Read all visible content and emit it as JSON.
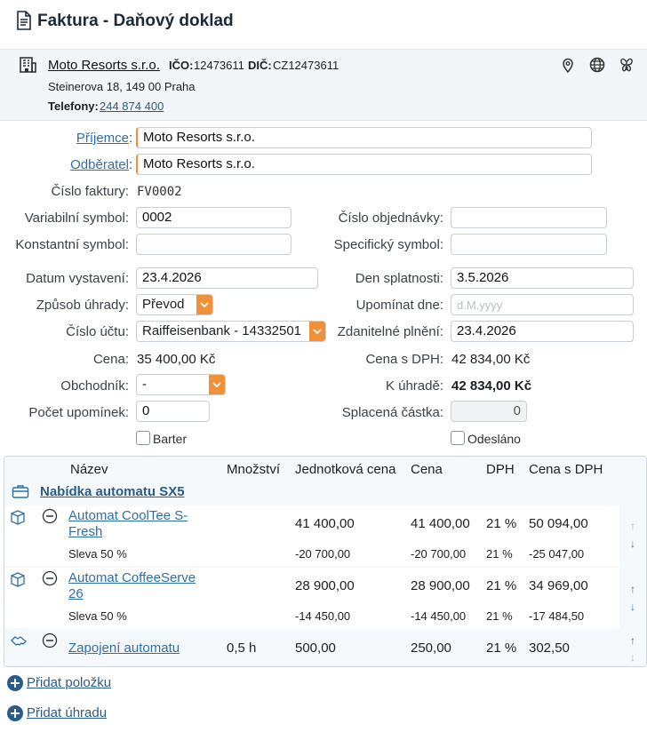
{
  "header": {
    "title": "Faktura - Daňový doklad"
  },
  "company": {
    "name": "Moto Resorts s.r.o.",
    "ico_label": "IČO:",
    "ico": "12473611",
    "dic_label": "DIČ:",
    "dic": "CZ12473611",
    "address": "Steinerova 18, 149 00 Praha",
    "phone_label": "Telefony:",
    "phone": "244 874 400"
  },
  "form": {
    "recipient_label": "Příjemce",
    "recipient": "Moto Resorts s.r.o.",
    "customer_label": "Odběratel",
    "customer": "Moto Resorts s.r.o.",
    "invoice_no_label": "Číslo faktury:",
    "invoice_no": "FV0002",
    "var_symbol_label": "Variabilní symbol:",
    "var_symbol": "0002",
    "order_no_label": "Číslo objednávky:",
    "order_no": "",
    "const_symbol_label": "Konstantní symbol:",
    "const_symbol": "",
    "spec_symbol_label": "Specifický symbol:",
    "spec_symbol": "",
    "issue_date_label": "Datum vystavení:",
    "issue_date": "23.4.2026",
    "due_date_label": "Den splatnosti:",
    "due_date": "3.5.2026",
    "payment_method_label": "Způsob úhrady:",
    "payment_method": "Převod",
    "reminder_date_label": "Upomínat dne:",
    "reminder_date_placeholder": "d.M.yyyy",
    "account_label": "Číslo účtu:",
    "account": "Raiffeisenbank - 14332501",
    "taxable_date_label": "Zdanitelné plnění:",
    "taxable_date": "23.4.2026",
    "price_label": "Cena:",
    "price": "35 400,00 Kč",
    "price_vat_label": "Cena s DPH:",
    "price_vat": "42 834,00 Kč",
    "salesperson_label": "Obchodník:",
    "salesperson": "-",
    "to_pay_label": "K úhradě:",
    "to_pay": "42 834,00 Kč",
    "reminders_label": "Počet upomínek:",
    "reminders": "0",
    "paid_label": "Splacená částka:",
    "paid": "0",
    "barter_label": "Barter",
    "sent_label": "Odesláno"
  },
  "table": {
    "headers": [
      "Název",
      "Množství",
      "Jednotková cena",
      "Cena",
      "DPH",
      "Cena s DPH"
    ],
    "group_title": "Nabídka automatu SX5",
    "rows": [
      {
        "name": "Automat CoolTee S-Fresh",
        "qty": "",
        "unit": "41 400,00",
        "price": "41 400,00",
        "vat": "21 %",
        "total": "50 094,00",
        "discount": {
          "name": "Sleva 50 %",
          "unit": "-20 700,00",
          "price": "-20 700,00",
          "vat": "21 %",
          "total": "-25 047,00"
        }
      },
      {
        "name": "Automat CoffeeServe 26",
        "qty": "",
        "unit": "28 900,00",
        "price": "28 900,00",
        "vat": "21 %",
        "total": "34 969,00",
        "discount": {
          "name": "Sleva 50 %",
          "unit": "-14 450,00",
          "price": "-14 450,00",
          "vat": "21 %",
          "total": "-17 484,50"
        }
      },
      {
        "name": "Zapojení automatu",
        "qty": "0,5 h",
        "unit": "500,00",
        "price": "250,00",
        "vat": "21 %",
        "total": "302,50"
      }
    ]
  },
  "actions": {
    "add_item": "Přidat položku",
    "add_payment": "Přidat úhradu"
  },
  "colors": {
    "accent": "#f0913a",
    "link": "#2f6fa8",
    "header_bg": "#f3f6f9"
  },
  "icons": [
    "document-icon",
    "building-icon",
    "map-pin-icon",
    "globe-icon",
    "butterfly-icon",
    "box-icon",
    "minus-circle-icon",
    "handshake-icon",
    "briefcase-icon",
    "plus-circle-icon",
    "arrow-up-icon",
    "arrow-down-icon"
  ]
}
